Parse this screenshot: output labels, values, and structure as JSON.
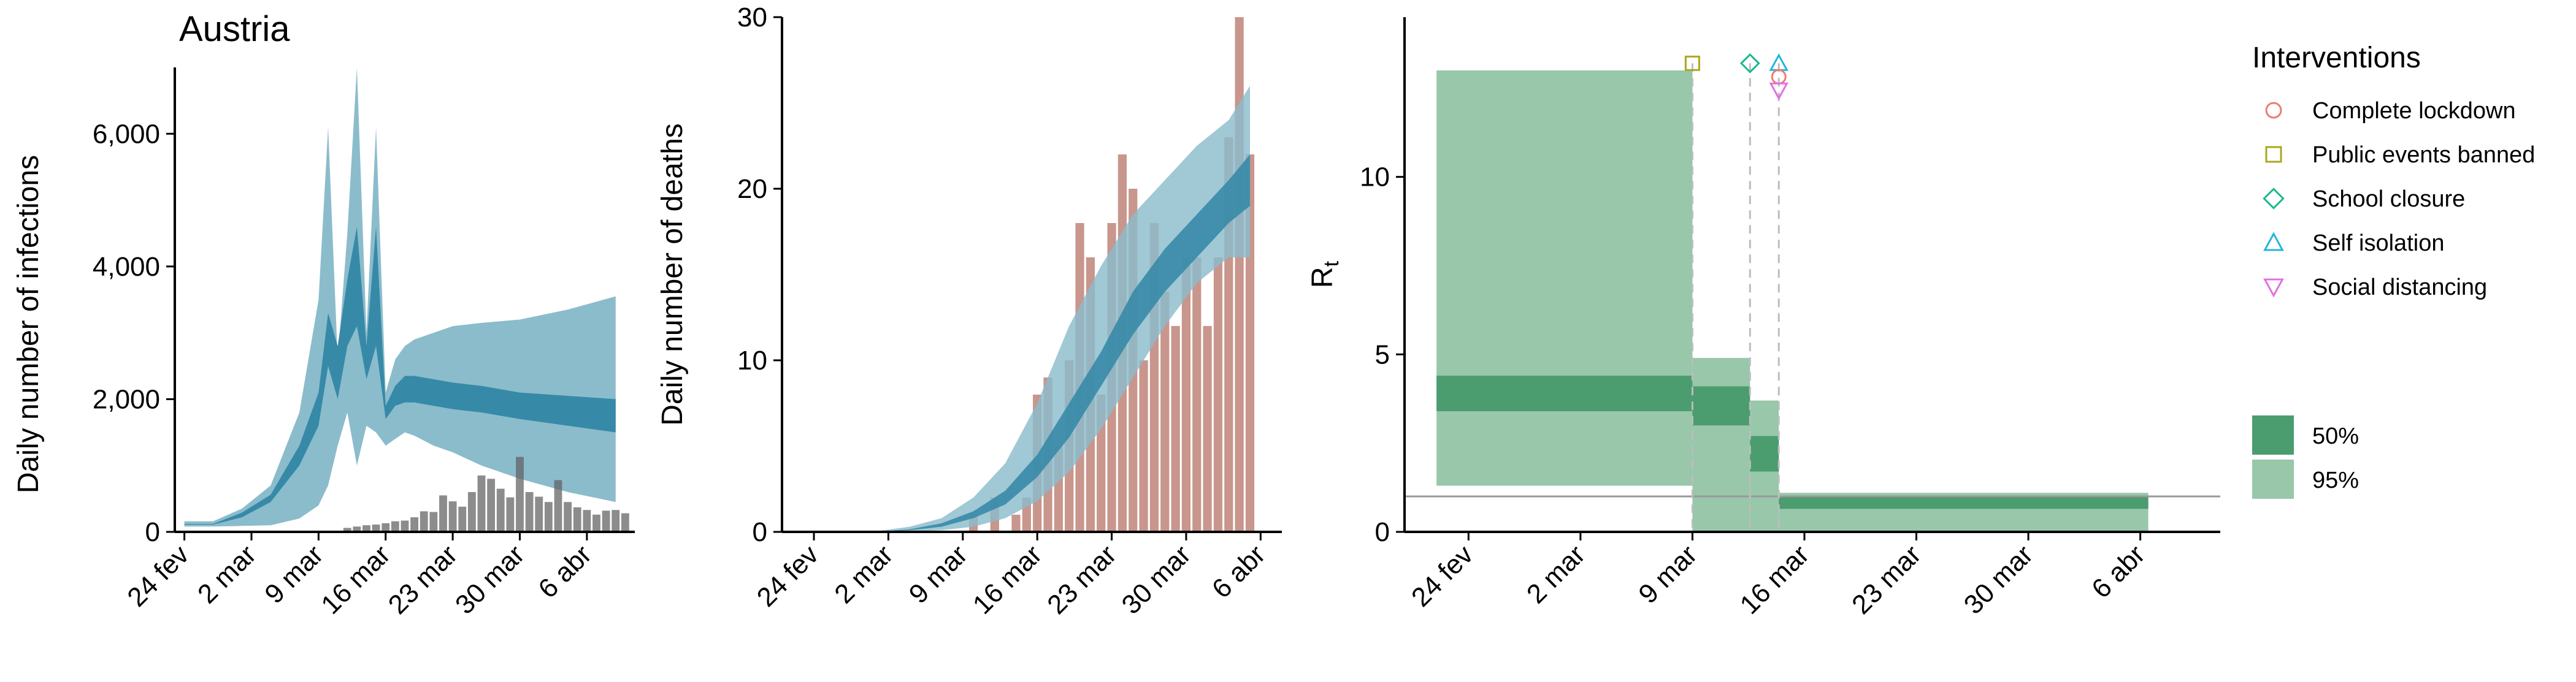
{
  "chart_data": [
    {
      "type": "area",
      "title": "Austria",
      "xlabel": "",
      "ylabel": "Daily number of infections",
      "ylim": [
        0,
        7000
      ],
      "yticks": [
        0,
        2000,
        4000,
        6000
      ],
      "ytick_labels": [
        "0",
        "2,000",
        "4,000",
        "6,000"
      ],
      "x_unit": "day index from 24 fev",
      "xlim": [
        -1,
        47
      ],
      "xticks": [
        0,
        7,
        14,
        21,
        28,
        35,
        42
      ],
      "xtick_labels": [
        "24 fev",
        "2 mar",
        "9 mar",
        "16 mar",
        "23 mar",
        "30 mar",
        "6 abr"
      ],
      "colors": {
        "ci95": "#8bbccc",
        "ci50": "#3789a8",
        "bars": "#5f5f5f"
      },
      "days": [
        0,
        3,
        6,
        9,
        12,
        14,
        15,
        16,
        17,
        18,
        19,
        20,
        21,
        22,
        23,
        24,
        26,
        28,
        31,
        35,
        40,
        45
      ],
      "band95_low": [
        80,
        80,
        90,
        100,
        200,
        400,
        700,
        1300,
        1800,
        1000,
        1600,
        1500,
        1300,
        1400,
        1500,
        1450,
        1300,
        1200,
        1000,
        800,
        600,
        450
      ],
      "band95_high": [
        160,
        160,
        350,
        700,
        1800,
        3500,
        6100,
        2600,
        4500,
        7000,
        3000,
        6100,
        2100,
        2600,
        2800,
        2900,
        3000,
        3100,
        3150,
        3200,
        3350,
        3550
      ],
      "band50_low": [
        110,
        110,
        220,
        450,
        1000,
        1600,
        2500,
        2000,
        2800,
        3100,
        2300,
        2800,
        1700,
        1900,
        1950,
        1950,
        1900,
        1850,
        1800,
        1700,
        1600,
        1500
      ],
      "band50_high": [
        120,
        120,
        290,
        560,
        1300,
        2100,
        3300,
        2800,
        3800,
        4600,
        2800,
        4600,
        1900,
        2200,
        2350,
        2350,
        2300,
        2250,
        2200,
        2100,
        2050,
        2000
      ],
      "bar_days": [
        17,
        18,
        19,
        20,
        21,
        22,
        23,
        24,
        25,
        26,
        27,
        28,
        29,
        30,
        31,
        32,
        33,
        34,
        35,
        36,
        37,
        38,
        39,
        40,
        41,
        42,
        43,
        44,
        45,
        46
      ],
      "bar_values": [
        60,
        80,
        100,
        110,
        130,
        160,
        170,
        220,
        310,
        300,
        550,
        460,
        380,
        600,
        850,
        800,
        650,
        520,
        1130,
        600,
        530,
        450,
        780,
        450,
        370,
        330,
        260,
        320,
        330,
        280
      ]
    },
    {
      "type": "area",
      "title": "",
      "xlabel": "",
      "ylabel": "Daily number of deaths",
      "ylim": [
        0,
        30
      ],
      "yticks": [
        0,
        10,
        20,
        30
      ],
      "ytick_labels": [
        "0",
        "10",
        "20",
        "30"
      ],
      "x_unit": "day index from 24 fev",
      "xlim": [
        -3,
        44
      ],
      "xticks": [
        0,
        7,
        14,
        21,
        28,
        35,
        42
      ],
      "xtick_labels": [
        "24 fev",
        "2 mar",
        "9 mar",
        "16 mar",
        "23 mar",
        "30 mar",
        "6 abr"
      ],
      "colors": {
        "ci95": "#8bbccc",
        "ci50": "#3789a8",
        "bars": "#c8968c",
        "bar_overlap": "#6a7f8a"
      },
      "days": [
        0,
        3,
        6,
        9,
        12,
        15,
        18,
        21,
        24,
        27,
        30,
        33,
        36,
        39,
        41
      ],
      "band95_low": [
        0,
        0,
        0,
        0,
        0.1,
        0.3,
        0.8,
        1.8,
        3.5,
        6.0,
        9.0,
        12.0,
        14.5,
        16.0,
        16.0
      ],
      "band95_high": [
        0,
        0,
        0.05,
        0.3,
        0.8,
        2.0,
        4.0,
        7.5,
        12.0,
        15.5,
        18.5,
        20.5,
        22.5,
        24.0,
        26.0
      ],
      "band50_low": [
        0,
        0,
        0,
        0.1,
        0.3,
        0.8,
        1.6,
        3.2,
        5.5,
        8.5,
        11.5,
        14.0,
        16.0,
        18.0,
        19.0
      ],
      "band50_high": [
        0,
        0,
        0,
        0.15,
        0.5,
        1.2,
        2.4,
        4.5,
        7.5,
        10.5,
        14.0,
        16.5,
        18.5,
        20.5,
        22.0
      ],
      "bar_days": [
        15,
        17,
        19,
        20,
        21,
        22,
        23,
        24,
        25,
        26,
        27,
        28,
        29,
        30,
        31,
        32,
        33,
        34,
        35,
        36,
        37,
        38,
        39,
        40,
        41
      ],
      "bar_values": [
        1,
        2,
        1,
        2,
        8,
        9,
        5,
        10,
        18,
        16,
        8,
        18,
        22,
        20,
        10,
        18,
        14,
        12,
        16,
        16,
        12,
        16,
        23,
        30,
        22
      ]
    },
    {
      "type": "step",
      "title": "",
      "xlabel": "",
      "ylabel": "R",
      "ylabel_subscript": "t",
      "ylim": [
        0,
        14.5
      ],
      "yticks": [
        0,
        5,
        10
      ],
      "ytick_labels": [
        "0",
        "5",
        "10"
      ],
      "x_unit": "day index from 24 fev",
      "xlim": [
        -4,
        47
      ],
      "xticks": [
        0,
        7,
        14,
        21,
        28,
        35,
        42
      ],
      "xtick_labels": [
        "24 fev",
        "2 mar",
        "9 mar",
        "16 mar",
        "23 mar",
        "30 mar",
        "6 abr"
      ],
      "reference_line": 1,
      "segments": [
        {
          "start": -2,
          "end": 14,
          "ci95": [
            1.3,
            13.0
          ],
          "ci50": [
            3.4,
            4.4
          ]
        },
        {
          "start": 14,
          "end": 17.6,
          "ci95": [
            0,
            4.9
          ],
          "ci50": [
            3.0,
            4.1
          ]
        },
        {
          "start": 17.6,
          "end": 19.4,
          "ci95": [
            0,
            3.7
          ],
          "ci50": [
            1.7,
            2.7
          ]
        },
        {
          "start": 19.4,
          "end": 42.5,
          "ci95": [
            0,
            1.1
          ],
          "ci50": [
            0.65,
            1.0
          ]
        }
      ],
      "interventions": [
        {
          "name": "Public events banned",
          "day": 14,
          "marker": "square",
          "color": "#a8a820"
        },
        {
          "name": "School closure",
          "day": 17.6,
          "marker": "diamond",
          "color": "#1ab98f"
        },
        {
          "name": "Self isolation",
          "day": 19.4,
          "marker": "triangle",
          "color": "#22b6de"
        },
        {
          "name": "Complete lockdown",
          "day": 19.4,
          "marker": "circle",
          "color": "#ef7b6f"
        },
        {
          "name": "Social distancing",
          "day": 19.4,
          "marker": "triangle-down",
          "color": "#e46fe0"
        }
      ],
      "colors": {
        "ci95": "#98c7aa",
        "ci50": "#4b9c6e",
        "dashed": "#bdbdbd",
        "reference": "#999999"
      },
      "legend_placement": "right",
      "legend": {
        "title": "Interventions",
        "items": [
          {
            "label": "Complete lockdown",
            "marker": "circle",
            "color": "#ef7b6f"
          },
          {
            "label": "Public events banned",
            "marker": "square",
            "color": "#a8a820"
          },
          {
            "label": "School closure",
            "marker": "diamond",
            "color": "#1ab98f"
          },
          {
            "label": "Self isolation",
            "marker": "triangle",
            "color": "#22b6de"
          },
          {
            "label": "Social distancing",
            "marker": "triangle-down",
            "color": "#e46fe0"
          }
        ],
        "ci_items": [
          {
            "label": "50%",
            "color": "#4b9c6e"
          },
          {
            "label": "95%",
            "color": "#98c7aa"
          }
        ]
      }
    }
  ]
}
